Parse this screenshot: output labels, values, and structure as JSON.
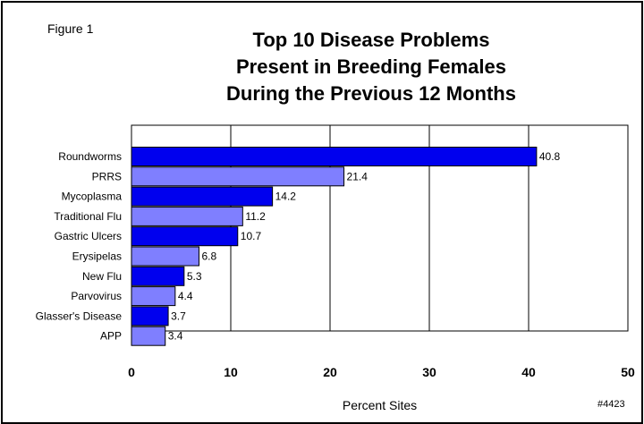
{
  "figure_label": "Figure 1",
  "title_lines": [
    "Top 10 Disease Problems",
    "Present in Breeding Females",
    "During the Previous 12 Months"
  ],
  "reference": "#4423",
  "colors": {
    "dark_bar": "#0000EE",
    "light_bar": "#7F7FFF"
  },
  "chart_data": {
    "type": "bar",
    "orientation": "horizontal",
    "title": "Top 10 Disease Problems Present in Breeding Females During the Previous 12 Months",
    "categories": [
      "Roundworms",
      "PRRS",
      "Mycoplasma",
      "Traditional Flu",
      "Gastric Ulcers",
      "Erysipelas",
      "New Flu",
      "Parvovirus",
      "Glasser's Disease",
      "APP"
    ],
    "values": [
      40.8,
      21.4,
      14.2,
      11.2,
      10.7,
      6.8,
      5.3,
      4.4,
      3.7,
      3.4
    ],
    "value_labels": [
      "40.8",
      "21.4",
      "14.2",
      "11.2",
      "10.7",
      "6.8",
      "5.3",
      "4.4",
      "3.7",
      "3.4"
    ],
    "xlabel": "Percent Sites",
    "ylabel": "",
    "xlim": [
      0,
      50
    ],
    "xticks": [
      0,
      10,
      20,
      30,
      40,
      50
    ],
    "xtick_labels": [
      "0",
      "10",
      "20",
      "30",
      "40",
      "50"
    ],
    "grid": "vertical"
  }
}
